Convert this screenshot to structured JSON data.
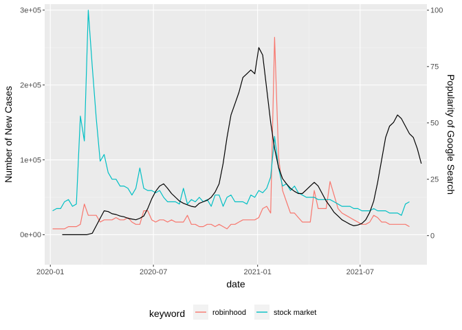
{
  "chart_data": {
    "type": "line",
    "title": "",
    "xlabel": "date",
    "ylabel_left": "Number of New Cases",
    "ylabel_right": "Popularity of Google Search",
    "x_ticks": [
      "2020-01",
      "2020-07",
      "2021-01",
      "2021-07"
    ],
    "y_left_ticks": [
      "0e+00",
      "1e+05",
      "2e+05",
      "3e+05"
    ],
    "y_right_ticks": [
      "0",
      "25",
      "50",
      "75",
      "100"
    ],
    "xlim": [
      "2019-12-22",
      "2021-10-27"
    ],
    "ylim_left": [
      -40000,
      308000
    ],
    "ylim_right": [
      -12.9,
      102.7
    ],
    "grid": true,
    "legend": {
      "position": "bottom",
      "title": "keyword",
      "entries": [
        {
          "label": "robinhood",
          "color": "#F8766D"
        },
        {
          "label": "stock market",
          "color": "#00BFC4"
        }
      ]
    },
    "cases": {
      "color": "#000000",
      "axis": "left",
      "dates": [
        "2020-01-22",
        "2020-02-15",
        "2020-03-05",
        "2020-03-15",
        "2020-03-22",
        "2020-03-29",
        "2020-04-05",
        "2020-04-12",
        "2020-04-19",
        "2020-04-26",
        "2020-05-03",
        "2020-05-10",
        "2020-05-17",
        "2020-05-24",
        "2020-05-31",
        "2020-06-07",
        "2020-06-14",
        "2020-06-21",
        "2020-06-28",
        "2020-07-05",
        "2020-07-12",
        "2020-07-19",
        "2020-07-26",
        "2020-08-02",
        "2020-08-09",
        "2020-08-16",
        "2020-08-23",
        "2020-08-30",
        "2020-09-06",
        "2020-09-13",
        "2020-09-20",
        "2020-09-27",
        "2020-10-04",
        "2020-10-11",
        "2020-10-18",
        "2020-10-25",
        "2020-11-01",
        "2020-11-08",
        "2020-11-15",
        "2020-11-22",
        "2020-11-29",
        "2020-12-06",
        "2020-12-13",
        "2020-12-20",
        "2020-12-27",
        "2021-01-03",
        "2021-01-10",
        "2021-01-17",
        "2021-01-24",
        "2021-01-31",
        "2021-02-07",
        "2021-02-14",
        "2021-02-21",
        "2021-02-28",
        "2021-03-07",
        "2021-03-14",
        "2021-03-21",
        "2021-03-28",
        "2021-04-04",
        "2021-04-11",
        "2021-04-18",
        "2021-04-25",
        "2021-05-02",
        "2021-05-09",
        "2021-05-16",
        "2021-05-23",
        "2021-05-30",
        "2021-06-06",
        "2021-06-13",
        "2021-06-20",
        "2021-06-27",
        "2021-07-04",
        "2021-07-11",
        "2021-07-18",
        "2021-07-25",
        "2021-08-01",
        "2021-08-08",
        "2021-08-15",
        "2021-08-22",
        "2021-08-29",
        "2021-09-05",
        "2021-09-12",
        "2021-09-19",
        "2021-09-26",
        "2021-10-03",
        "2021-10-10",
        "2021-10-17"
      ],
      "values": [
        0,
        0,
        0,
        2000,
        12000,
        22000,
        32000,
        31000,
        28000,
        27000,
        25000,
        24000,
        22000,
        21000,
        20000,
        22000,
        25000,
        35000,
        48000,
        58000,
        65000,
        68000,
        62000,
        55000,
        50000,
        45000,
        42000,
        40000,
        38000,
        37000,
        42000,
        44000,
        46000,
        50000,
        57000,
        68000,
        95000,
        130000,
        160000,
        175000,
        190000,
        210000,
        215000,
        220000,
        215000,
        250000,
        240000,
        195000,
        150000,
        115000,
        90000,
        75000,
        68000,
        62000,
        58000,
        55000,
        55000,
        60000,
        65000,
        70000,
        65000,
        55000,
        45000,
        38000,
        30000,
        25000,
        20000,
        17000,
        14000,
        12000,
        13000,
        15000,
        20000,
        30000,
        45000,
        70000,
        100000,
        130000,
        145000,
        150000,
        160000,
        155000,
        145000,
        135000,
        130000,
        115000,
        95000
      ]
    },
    "series": [
      {
        "name": "robinhood",
        "color": "#F8766D",
        "axis": "right",
        "dates": [
          "2020-01-05",
          "2020-01-12",
          "2020-01-19",
          "2020-01-26",
          "2020-02-02",
          "2020-02-09",
          "2020-02-16",
          "2020-02-23",
          "2020-03-01",
          "2020-03-08",
          "2020-03-15",
          "2020-03-22",
          "2020-03-29",
          "2020-04-05",
          "2020-04-12",
          "2020-04-19",
          "2020-04-26",
          "2020-05-03",
          "2020-05-10",
          "2020-05-17",
          "2020-05-24",
          "2020-05-31",
          "2020-06-07",
          "2020-06-14",
          "2020-06-21",
          "2020-06-28",
          "2020-07-05",
          "2020-07-12",
          "2020-07-19",
          "2020-07-26",
          "2020-08-02",
          "2020-08-09",
          "2020-08-16",
          "2020-08-23",
          "2020-08-30",
          "2020-09-06",
          "2020-09-13",
          "2020-09-20",
          "2020-09-27",
          "2020-10-04",
          "2020-10-11",
          "2020-10-18",
          "2020-10-25",
          "2020-11-01",
          "2020-11-08",
          "2020-11-15",
          "2020-11-22",
          "2020-11-29",
          "2020-12-06",
          "2020-12-13",
          "2020-12-20",
          "2020-12-27",
          "2021-01-03",
          "2021-01-10",
          "2021-01-17",
          "2021-01-24",
          "2021-01-31",
          "2021-02-07",
          "2021-02-14",
          "2021-02-21",
          "2021-02-28",
          "2021-03-07",
          "2021-03-14",
          "2021-03-21",
          "2021-03-28",
          "2021-04-04",
          "2021-04-11",
          "2021-04-18",
          "2021-04-25",
          "2021-05-02",
          "2021-05-09",
          "2021-05-16",
          "2021-05-23",
          "2021-05-30",
          "2021-06-06",
          "2021-06-13",
          "2021-06-20",
          "2021-06-27",
          "2021-07-04",
          "2021-07-11",
          "2021-07-18",
          "2021-07-25",
          "2021-08-01",
          "2021-08-08",
          "2021-08-15",
          "2021-08-22",
          "2021-08-29",
          "2021-09-05",
          "2021-09-12",
          "2021-09-19",
          "2021-09-26"
        ],
        "values": [
          3,
          3,
          3,
          3,
          4,
          4,
          4,
          5,
          14,
          9,
          9,
          9,
          6,
          7,
          7,
          7,
          8,
          7,
          7,
          8,
          6,
          5,
          5,
          11,
          11,
          7,
          6,
          7,
          7,
          6,
          7,
          6,
          6,
          6,
          9,
          5,
          5,
          4,
          4,
          5,
          5,
          4,
          5,
          4,
          3,
          5,
          5,
          6,
          7,
          7,
          7,
          7,
          8,
          12,
          13,
          10,
          88,
          35,
          20,
          15,
          10,
          10,
          8,
          6,
          6,
          6,
          20,
          12,
          12,
          12,
          24,
          18,
          12,
          10,
          9,
          8,
          7,
          6,
          5,
          5,
          6,
          9,
          8,
          6,
          6,
          5,
          5,
          5,
          5,
          5,
          4
        ]
      },
      {
        "name": "stock market",
        "color": "#00BFC4",
        "axis": "right",
        "dates": [
          "2020-01-05",
          "2020-01-12",
          "2020-01-19",
          "2020-01-26",
          "2020-02-02",
          "2020-02-09",
          "2020-02-16",
          "2020-02-23",
          "2020-03-01",
          "2020-03-08",
          "2020-03-15",
          "2020-03-22",
          "2020-03-29",
          "2020-04-05",
          "2020-04-12",
          "2020-04-19",
          "2020-04-26",
          "2020-05-03",
          "2020-05-10",
          "2020-05-17",
          "2020-05-24",
          "2020-05-31",
          "2020-06-07",
          "2020-06-14",
          "2020-06-21",
          "2020-06-28",
          "2020-07-05",
          "2020-07-12",
          "2020-07-19",
          "2020-07-26",
          "2020-08-02",
          "2020-08-09",
          "2020-08-16",
          "2020-08-23",
          "2020-08-30",
          "2020-09-06",
          "2020-09-13",
          "2020-09-20",
          "2020-09-27",
          "2020-10-04",
          "2020-10-11",
          "2020-10-18",
          "2020-10-25",
          "2020-11-01",
          "2020-11-08",
          "2020-11-15",
          "2020-11-22",
          "2020-11-29",
          "2020-12-06",
          "2020-12-13",
          "2020-12-20",
          "2020-12-27",
          "2021-01-03",
          "2021-01-10",
          "2021-01-17",
          "2021-01-24",
          "2021-01-31",
          "2021-02-07",
          "2021-02-14",
          "2021-02-21",
          "2021-02-28",
          "2021-03-07",
          "2021-03-14",
          "2021-03-21",
          "2021-03-28",
          "2021-04-04",
          "2021-04-11",
          "2021-04-18",
          "2021-04-25",
          "2021-05-02",
          "2021-05-09",
          "2021-05-16",
          "2021-05-23",
          "2021-05-30",
          "2021-06-06",
          "2021-06-13",
          "2021-06-20",
          "2021-06-27",
          "2021-07-04",
          "2021-07-11",
          "2021-07-18",
          "2021-07-25",
          "2021-08-01",
          "2021-08-08",
          "2021-08-15",
          "2021-08-22",
          "2021-08-29",
          "2021-09-05",
          "2021-09-12",
          "2021-09-19",
          "2021-09-26"
        ],
        "values": [
          11,
          12,
          12,
          15,
          16,
          13,
          14,
          53,
          42,
          100,
          75,
          52,
          33,
          36,
          28,
          25,
          25,
          22,
          22,
          21,
          18,
          21,
          30,
          21,
          20,
          20,
          19,
          20,
          17,
          15,
          15,
          15,
          14,
          21,
          14,
          16,
          15,
          17,
          15,
          16,
          13,
          18,
          18,
          13,
          17,
          18,
          15,
          15,
          15,
          14,
          18,
          17,
          20,
          19,
          21,
          26,
          44,
          30,
          22,
          23,
          20,
          22,
          19,
          18,
          17,
          17,
          17,
          16,
          16,
          16,
          16,
          15,
          14,
          13,
          13,
          13,
          12,
          12,
          11,
          11,
          11,
          12,
          11,
          11,
          11,
          10,
          10,
          10,
          9,
          14,
          15
        ]
      }
    ]
  }
}
